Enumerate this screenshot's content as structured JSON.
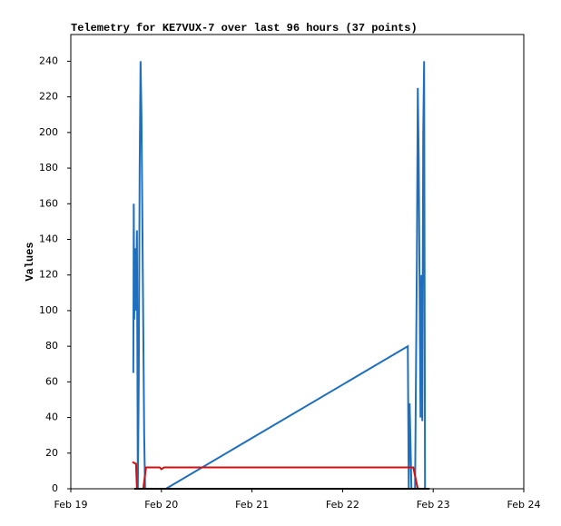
{
  "chart_data": {
    "type": "line",
    "title": "Telemetry for KE7VUX-7 over last 96 hours (37 points)",
    "y_label": "Values",
    "xlim": [
      0,
      5
    ],
    "ylim": [
      0,
      255
    ],
    "xticks": [
      {
        "value": 0,
        "label": "Feb 19"
      },
      {
        "value": 1,
        "label": "Feb 20"
      },
      {
        "value": 2,
        "label": "Feb 21"
      },
      {
        "value": 3,
        "label": "Feb 22"
      },
      {
        "value": 4,
        "label": "Feb 23"
      },
      {
        "value": 5,
        "label": "Feb 24"
      }
    ],
    "yticks": [
      0,
      20,
      40,
      60,
      80,
      100,
      120,
      140,
      160,
      180,
      200,
      220,
      240
    ],
    "series": [
      {
        "color": "#1f6fbf",
        "x": [
          0.69,
          0.695,
          0.7,
          0.71,
          0.72,
          0.73,
          0.74,
          0.75,
          0.76,
          0.77,
          0.78,
          0.79,
          0.8,
          0.81,
          0.82,
          1.05,
          3.72,
          3.73,
          3.74,
          3.75,
          3.76,
          3.8,
          3.82,
          3.83,
          3.84,
          3.85,
          3.86,
          3.87,
          3.88,
          3.89,
          3.9,
          3.91,
          3.92,
          3.93,
          3.94,
          3.95,
          3.96
        ],
        "values": [
          65,
          160,
          95,
          135,
          100,
          145,
          0,
          60,
          180,
          240,
          210,
          150,
          90,
          30,
          0,
          0,
          80,
          0,
          48,
          25,
          0,
          0,
          128,
          225,
          186,
          113,
          40,
          120,
          38,
          200,
          240,
          0,
          0,
          0,
          0,
          0,
          0
        ]
      },
      {
        "color": "#d01010",
        "x": [
          0.68,
          0.72,
          0.73,
          0.8,
          0.83,
          0.98,
          1.0,
          1.03,
          3.78,
          3.83,
          3.85
        ],
        "values": [
          15,
          14,
          0,
          0,
          12,
          12,
          11,
          12,
          12,
          0,
          0
        ]
      },
      {
        "color": "#000000",
        "x": [
          0.7,
          3.96
        ],
        "values": [
          0,
          0
        ]
      }
    ]
  }
}
